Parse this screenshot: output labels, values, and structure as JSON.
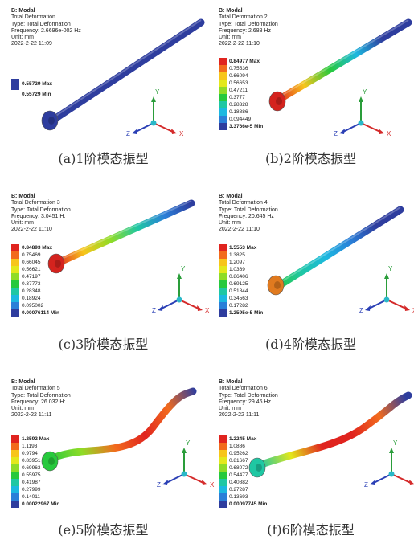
{
  "panels": [
    {
      "header": "B: Modal",
      "title": "Total Deformation",
      "type": "Type: Total Deformation",
      "frequency": "Frequency: 2.6696e-002 Hz",
      "unit": "Unit: mm",
      "date": "2022-2-22 11:09",
      "caption": "(a)1阶模态振型",
      "legend": [
        {
          "label": "0.55729 Max",
          "color": "#2e3d9e"
        },
        {
          "label": "0.55729 Min",
          "color": "#2e3d9e"
        }
      ]
    },
    {
      "header": "B: Modal",
      "title": "Total Deformation 2",
      "type": "Type: Total Deformation",
      "frequency": "Frequency: 2.688 Hz",
      "unit": "Unit: mm",
      "date": "2022-2-22 11:10",
      "caption": "(b)2阶模态振型",
      "legend": [
        {
          "label": "0.84977 Max",
          "color": "#e0241f"
        },
        {
          "label": "0.75536",
          "color": "#f26b1d"
        },
        {
          "label": "0.66094",
          "color": "#f7c51b"
        },
        {
          "label": "0.56653",
          "color": "#e3e81c"
        },
        {
          "label": "0.47211",
          "color": "#8fdc27"
        },
        {
          "label": "0.3777",
          "color": "#27c93d"
        },
        {
          "label": "0.28328",
          "color": "#1fc7a3"
        },
        {
          "label": "0.18886",
          "color": "#1cb8e0"
        },
        {
          "label": "0.094449",
          "color": "#2a7fd8"
        },
        {
          "label": "3.3766e-5 Min",
          "color": "#2e3d9e"
        }
      ]
    },
    {
      "header": "B: Modal",
      "title": "Total Deformation 3",
      "type": "Type: Total Deformation",
      "frequency": "Frequency: 3.0451 H:",
      "unit": "Unit: mm",
      "date": "2022-2-22 11:10",
      "caption": "(c)3阶模态振型",
      "legend": [
        {
          "label": "0.84893 Max",
          "color": "#e0241f"
        },
        {
          "label": "0.75469",
          "color": "#f26b1d"
        },
        {
          "label": "0.66045",
          "color": "#f7c51b"
        },
        {
          "label": "0.56621",
          "color": "#e3e81c"
        },
        {
          "label": "0.47197",
          "color": "#8fdc27"
        },
        {
          "label": "0.37773",
          "color": "#27c93d"
        },
        {
          "label": "0.28348",
          "color": "#1fc7a3"
        },
        {
          "label": "0.18924",
          "color": "#1cb8e0"
        },
        {
          "label": "0.095002",
          "color": "#2a7fd8"
        },
        {
          "label": "0.00076114 Min",
          "color": "#2e3d9e"
        }
      ]
    },
    {
      "header": "B: Modal",
      "title": "Total Deformation 4",
      "type": "Type: Total Deformation",
      "frequency": "Frequency: 20.645 Hz",
      "unit": "Unit: mm",
      "date": "2022-2-22 11:10",
      "caption": "(d)4阶模态振型",
      "legend": [
        {
          "label": "1.5553 Max",
          "color": "#e0241f"
        },
        {
          "label": "1.3825",
          "color": "#f26b1d"
        },
        {
          "label": "1.2097",
          "color": "#f7c51b"
        },
        {
          "label": "1.0369",
          "color": "#e3e81c"
        },
        {
          "label": "0.86406",
          "color": "#8fdc27"
        },
        {
          "label": "0.69125",
          "color": "#27c93d"
        },
        {
          "label": "0.51844",
          "color": "#1fc7a3"
        },
        {
          "label": "0.34563",
          "color": "#1cb8e0"
        },
        {
          "label": "0.17282",
          "color": "#2a7fd8"
        },
        {
          "label": "1.2595e-5 Min",
          "color": "#2e3d9e"
        }
      ]
    },
    {
      "header": "B: Modal",
      "title": "Total Deformation 5",
      "type": "Type: Total Deformation",
      "frequency": "Frequency: 26.032 H:",
      "unit": "Unit: mm",
      "date": "2022-2-22 11:11",
      "caption": "(e)5阶模态振型",
      "legend": [
        {
          "label": "1.2592 Max",
          "color": "#e0241f"
        },
        {
          "label": "1.1193",
          "color": "#f26b1d"
        },
        {
          "label": "0.9794",
          "color": "#f7c51b"
        },
        {
          "label": "0.83951",
          "color": "#e3e81c"
        },
        {
          "label": "0.69963",
          "color": "#8fdc27"
        },
        {
          "label": "0.55975",
          "color": "#27c93d"
        },
        {
          "label": "0.41987",
          "color": "#1fc7a3"
        },
        {
          "label": "0.27999",
          "color": "#1cb8e0"
        },
        {
          "label": "0.14011",
          "color": "#2a7fd8"
        },
        {
          "label": "0.00022967 Min",
          "color": "#2e3d9e"
        }
      ]
    },
    {
      "header": "B: Modal",
      "title": "Total Deformation 6",
      "type": "Type: Total Deformation",
      "frequency": "Frequency: 29.46 Hz",
      "unit": "Unit: mm",
      "date": "2022-2-22 11:11",
      "caption": "(f)6阶模态振型",
      "legend": [
        {
          "label": "1.2245 Max",
          "color": "#e0241f"
        },
        {
          "label": "1.0886",
          "color": "#f26b1d"
        },
        {
          "label": "0.95262",
          "color": "#f7c51b"
        },
        {
          "label": "0.81667",
          "color": "#e3e81c"
        },
        {
          "label": "0.68072",
          "color": "#8fdc27"
        },
        {
          "label": "0.54477",
          "color": "#27c93d"
        },
        {
          "label": "0.40882",
          "color": "#1fc7a3"
        },
        {
          "label": "0.27287",
          "color": "#1cb8e0"
        },
        {
          "label": "0.13693",
          "color": "#2a7fd8"
        },
        {
          "label": "0.00097745 Min",
          "color": "#2e3d9e"
        }
      ]
    }
  ],
  "axes": {
    "x": "X",
    "y": "Y",
    "z": "Z"
  }
}
